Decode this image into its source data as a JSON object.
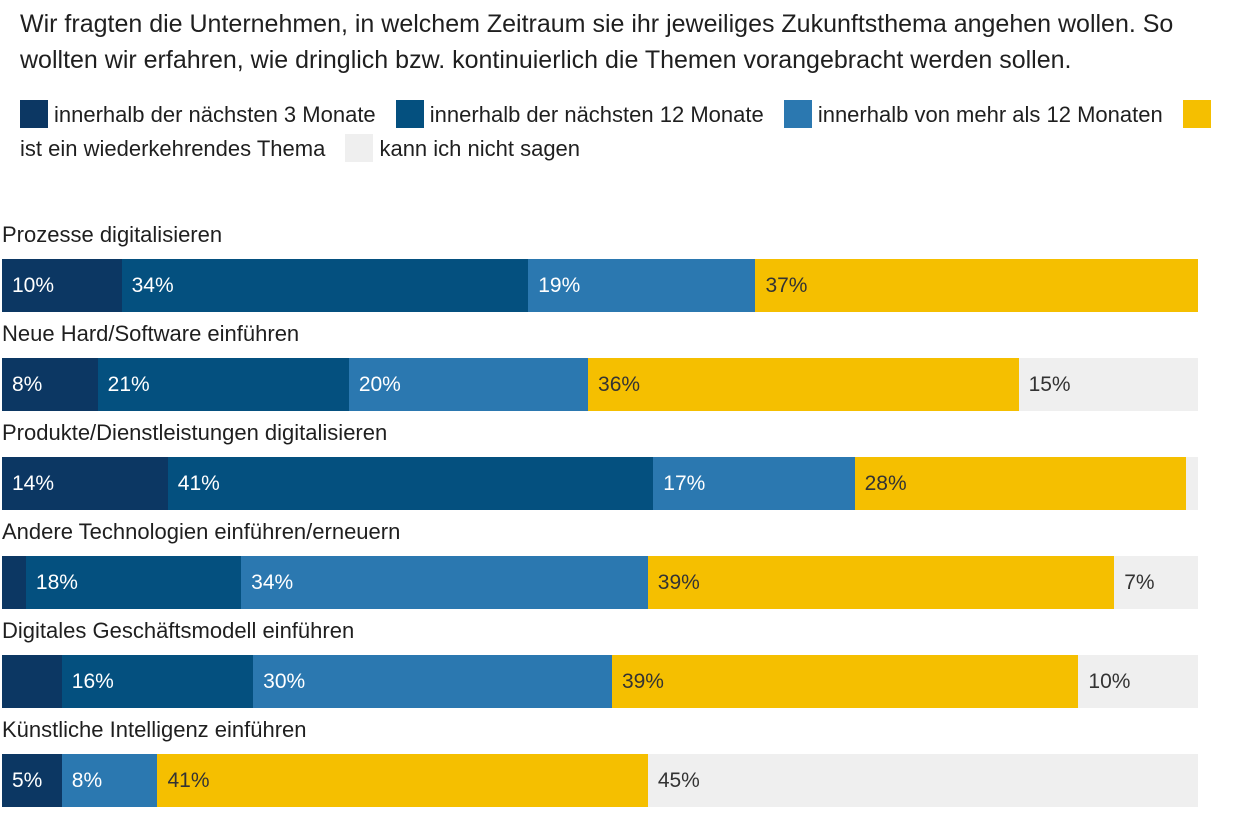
{
  "title": "Wir fragten die Unternehmen, in welchem Zeitraum sie ihr jeweiliges Zukunftsthema angehen wollen. So wollten wir erfahren, wie dringlich bzw. kontinuierlich die Themen vorangebracht werden sollen.",
  "colors": {
    "m3": "#0c3763",
    "m12": "#04507f",
    "more12": "#2b78b0",
    "recurring": "#f5bf00",
    "unknown": "#efefef",
    "text_light": "#ffffff",
    "text_dark": "#333333"
  },
  "legend": [
    {
      "label": "innerhalb der nächsten 3 Monate",
      "color": "#0c3763"
    },
    {
      "label": "innerhalb der nächsten 12 Monate",
      "color": "#04507f"
    },
    {
      "label": "innerhalb von mehr als 12 Monaten",
      "color": "#2b78b0"
    },
    {
      "label": "ist ein wiederkehrendes Thema",
      "color": "#f5bf00"
    },
    {
      "label": "kann ich nicht sagen",
      "color": "#efefef"
    }
  ],
  "chart_data": {
    "type": "bar",
    "orientation": "horizontal",
    "stacked": true,
    "unit": "%",
    "xlim": [
      0,
      100
    ],
    "categories": [
      "Prozesse digitalisieren",
      "Neue Hard/Software einführen",
      "Produkte/Dienstleistungen digitalisieren",
      "Andere Technologien einführen/erneuern",
      "Digitales Geschäftsmodell einführen",
      "Künstliche Intelligenz einführen"
    ],
    "series": [
      {
        "name": "innerhalb der nächsten 3 Monate",
        "color": "#0c3763",
        "values": [
          10,
          8,
          14,
          2,
          5,
          5
        ],
        "labels": [
          "10%",
          "8%",
          "14%",
          "",
          "",
          "5%"
        ]
      },
      {
        "name": "innerhalb der nächsten 12 Monate",
        "color": "#04507f",
        "values": [
          34,
          21,
          41,
          18,
          16,
          0
        ],
        "labels": [
          "34%",
          "21%",
          "41%",
          "18%",
          "16%",
          ""
        ]
      },
      {
        "name": "innerhalb von mehr als 12 Monaten",
        "color": "#2b78b0",
        "values": [
          19,
          20,
          17,
          34,
          30,
          8
        ],
        "labels": [
          "19%",
          "20%",
          "17%",
          "34%",
          "30%",
          "8%"
        ]
      },
      {
        "name": "ist ein wiederkehrendes Thema",
        "color": "#f5bf00",
        "values": [
          37,
          36,
          28,
          39,
          39,
          41
        ],
        "labels": [
          "37%",
          "36%",
          "28%",
          "39%",
          "39%",
          "41%"
        ]
      },
      {
        "name": "kann ich nicht sagen",
        "color": "#efefef",
        "values": [
          0,
          15,
          1,
          7,
          10,
          45
        ],
        "labels": [
          "",
          "15%",
          "",
          "7%",
          "10%",
          "45%"
        ]
      }
    ]
  }
}
